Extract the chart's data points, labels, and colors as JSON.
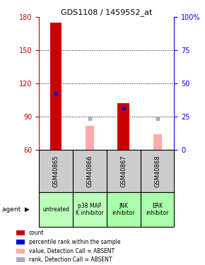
{
  "title": "GDS1108 / 1459552_at",
  "samples": [
    "GSM40865",
    "GSM40866",
    "GSM40867",
    "GSM40868"
  ],
  "agents": [
    "untreated",
    "p38 MAP\nK inhibitor",
    "JNK\ninhibitor",
    "ERK\ninhibitor"
  ],
  "ylim_left": [
    60,
    180
  ],
  "ylim_right": [
    0,
    100
  ],
  "yticks_left": [
    60,
    90,
    120,
    150,
    180
  ],
  "yticks_right": [
    0,
    25,
    50,
    75,
    100
  ],
  "yticklabels_right": [
    "0",
    "25",
    "50",
    "75",
    "100%"
  ],
  "red_bars_top": [
    175,
    null,
    102,
    null
  ],
  "pink_bars_top": [
    null,
    82,
    null,
    74
  ],
  "blue_markers": [
    111,
    null,
    98,
    null
  ],
  "light_blue_markers": [
    null,
    88,
    null,
    88
  ],
  "bar_bottom": 60,
  "red_color": "#cc0000",
  "pink_color": "#ffaaaa",
  "blue_color": "#0000cc",
  "light_blue_color": "#aaaacc",
  "sample_bg_color": "#cccccc",
  "agent_colors": [
    "#bbffbb",
    "#bbffbb",
    "#aaffaa",
    "#aaffaa"
  ],
  "legend_items": [
    {
      "color": "#cc0000",
      "label": "count"
    },
    {
      "color": "#0000cc",
      "label": "percentile rank within the sample"
    },
    {
      "color": "#ffaaaa",
      "label": "value, Detection Call = ABSENT"
    },
    {
      "color": "#aaaacc",
      "label": "rank, Detection Call = ABSENT"
    }
  ]
}
